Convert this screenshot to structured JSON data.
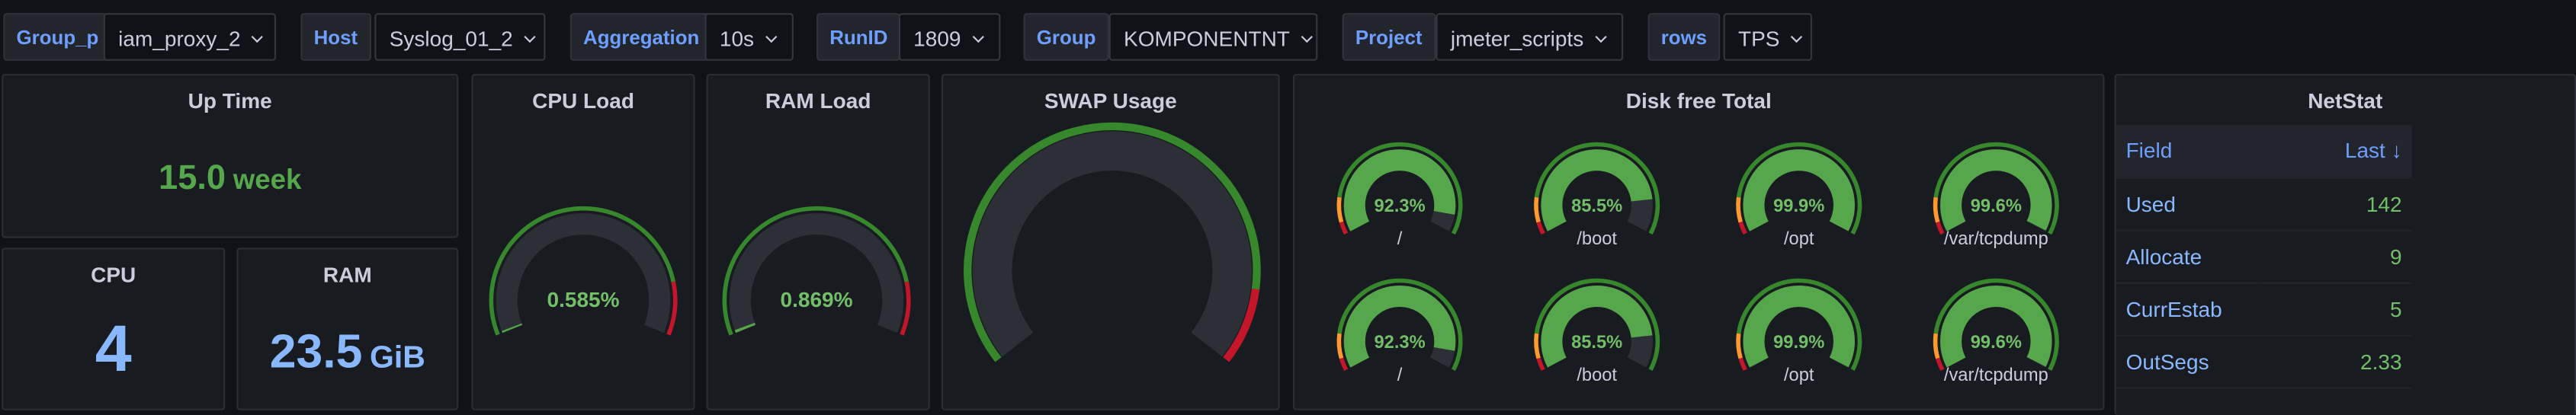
{
  "variables": [
    {
      "label": "Group_p",
      "value": "iam_proxy_2"
    },
    {
      "label": "Host",
      "value": "Syslog_01_2"
    },
    {
      "label": "Aggregation",
      "value": "10s"
    },
    {
      "label": "RunID",
      "value": "1809"
    },
    {
      "label": "Group",
      "value": "KOMPONENTNT"
    },
    {
      "label": "Project",
      "value": "jmeter_scripts"
    },
    {
      "label": "rows",
      "value": "TPS"
    }
  ],
  "panels": {
    "uptime": {
      "title": "Up Time",
      "value": "15.0",
      "unit": "week"
    },
    "cpu": {
      "title": "CPU",
      "value": "4"
    },
    "ram": {
      "title": "RAM",
      "value": "23.5",
      "unit": "GiB"
    },
    "cpu_load": {
      "title": "CPU Load",
      "value": 0.585,
      "label": "0.585%"
    },
    "ram_load": {
      "title": "RAM Load",
      "value": 0.869,
      "label": "0.869%"
    },
    "swap": {
      "title": "SWAP Usage"
    },
    "disk": {
      "title": "Disk free Total",
      "gauges": [
        {
          "name": "/",
          "value": 92.3,
          "label": "92.3%"
        },
        {
          "name": "/boot",
          "value": 85.5,
          "label": "85.5%"
        },
        {
          "name": "/opt",
          "value": 99.9,
          "label": "99.9%"
        },
        {
          "name": "/var/tcpdump",
          "value": 99.6,
          "label": "99.6%"
        },
        {
          "name": "/",
          "value": 92.3,
          "label": "92.3%"
        },
        {
          "name": "/boot",
          "value": 85.5,
          "label": "85.5%"
        },
        {
          "name": "/opt",
          "value": 99.9,
          "label": "99.9%"
        },
        {
          "name": "/var/tcpdump",
          "value": 99.6,
          "label": "99.6%"
        }
      ]
    },
    "netstat": {
      "title": "NetStat",
      "columns": [
        "Field",
        "Last ↓"
      ],
      "rows": [
        [
          "Used",
          "142"
        ],
        [
          "Allocate",
          "9"
        ],
        [
          "CurrEstab",
          "5"
        ],
        [
          "OutSegs",
          "2.33"
        ]
      ]
    }
  }
}
